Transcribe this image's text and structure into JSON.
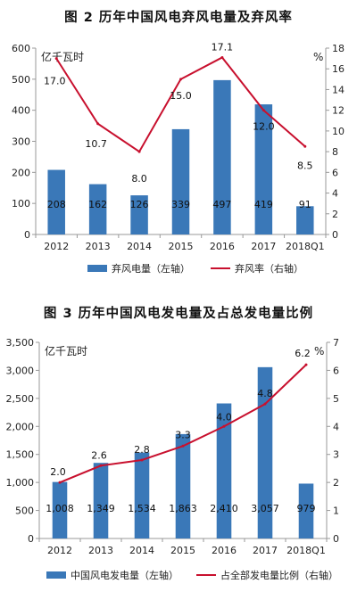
{
  "chart_data": [
    {
      "type": "bar+line",
      "title": "图 2 历年中国风电弃风电量及弃风率",
      "left_unit": "亿千瓦时",
      "right_unit": "%",
      "categories": [
        "2012",
        "2013",
        "2014",
        "2015",
        "2016",
        "2017",
        "2018Q1"
      ],
      "left_ticks": [
        "0",
        "100",
        "200",
        "300",
        "400",
        "500",
        "600"
      ],
      "right_ticks": [
        "0",
        "2",
        "4",
        "6",
        "8",
        "10",
        "12",
        "14",
        "16",
        "18"
      ],
      "ylim_left": [
        0,
        600
      ],
      "ylim_right": [
        0,
        18
      ],
      "series": [
        {
          "name": "弃风电量（左轴）",
          "kind": "bar",
          "axis": "left",
          "values": [
            208,
            162,
            126,
            339,
            497,
            419,
            91
          ],
          "labels": [
            "208",
            "162",
            "126",
            "339",
            "497",
            "419",
            "91"
          ]
        },
        {
          "name": "弃风率（右轴）",
          "kind": "line",
          "axis": "right",
          "values": [
            17.0,
            10.7,
            8.0,
            15.0,
            17.1,
            12.0,
            8.5
          ],
          "labels": [
            "17.0",
            "10.7",
            "8.0",
            "15.0",
            "17.1",
            "12.0",
            "8.5"
          ]
        }
      ],
      "colors": {
        "bar": "#3a78b8",
        "line": "#c8102e"
      }
    },
    {
      "type": "bar+line",
      "title": "图 3 历年中国风电发电量及占总发电量比例",
      "left_unit": "亿千瓦时",
      "right_unit": "%",
      "categories": [
        "2012",
        "2013",
        "2014",
        "2015",
        "2016",
        "2017",
        "2018Q1"
      ],
      "left_ticks": [
        "0",
        "500",
        "1,000",
        "1,500",
        "2,000",
        "2,500",
        "3,000",
        "3,500"
      ],
      "right_ticks": [
        "0",
        "1",
        "2",
        "3",
        "4",
        "5",
        "6",
        "7"
      ],
      "ylim_left": [
        0,
        3500
      ],
      "ylim_right": [
        0,
        7
      ],
      "series": [
        {
          "name": "中国风电发电量（左轴）",
          "kind": "bar",
          "axis": "left",
          "values": [
            1008,
            1349,
            1534,
            1863,
            2410,
            3057,
            979
          ],
          "labels": [
            "1,008",
            "1,349",
            "1,534",
            "1,863",
            "2,410",
            "3,057",
            "979"
          ]
        },
        {
          "name": "占全部发电量比例（右轴）",
          "kind": "line",
          "axis": "right",
          "values": [
            2.0,
            2.6,
            2.8,
            3.3,
            4.0,
            4.8,
            6.2
          ],
          "labels": [
            "2.0",
            "2.6",
            "2.8",
            "3.3",
            "4.0",
            "4.8",
            "6.2"
          ]
        }
      ],
      "colors": {
        "bar": "#3a78b8",
        "line": "#c8102e"
      }
    }
  ]
}
